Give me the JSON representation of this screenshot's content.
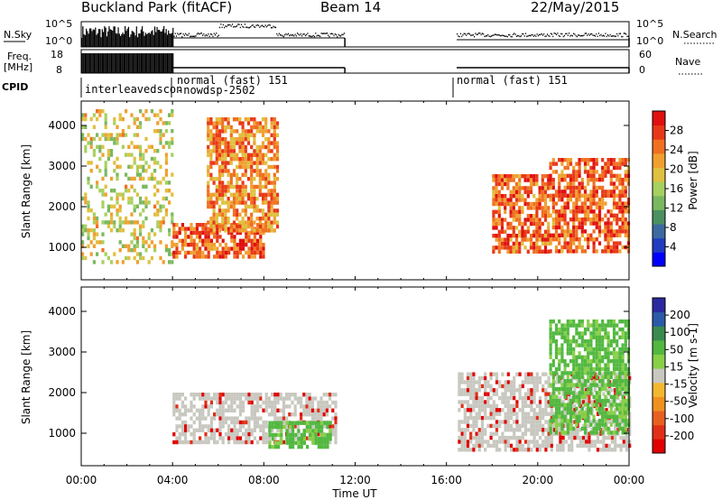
{
  "header": {
    "station": "Buckland Park (fitACF)",
    "beam": "Beam 14",
    "date": "22/May/2015"
  },
  "summary_labels": {
    "nsky": "N.Sky",
    "nsearch": "N.Search",
    "freq_line1": "Freq.",
    "freq_line2": "[MHz]",
    "nave": "Nave",
    "cpid": "CPID",
    "noise_tick_top": "10^5",
    "noise_tick_bottom": "10^0",
    "freq_tick_top": "18",
    "freq_tick_bottom": "8",
    "nave_tick_top": "60",
    "nave_tick_bottom": "0"
  },
  "cpid_labels": [
    "interleavedscon",
    "normal (fast) 151",
    "-nowdsp-2502",
    "normal (fast) 151"
  ],
  "x_axis": {
    "title": "Time UT",
    "ticks": [
      "00:00",
      "04:00",
      "08:00",
      "12:00",
      "16:00",
      "20:00",
      "00:00"
    ],
    "tick_hours": [
      0,
      4,
      8,
      12,
      16,
      20,
      24
    ],
    "range_hours": [
      0,
      24
    ]
  },
  "colors": {
    "power_scale": [
      "#0000ff",
      "#203cc0",
      "#3c6aa0",
      "#4a9060",
      "#7ab860",
      "#a8d060",
      "#e0c040",
      "#f0a030",
      "#f07020",
      "#e83818",
      "#e01010"
    ],
    "velocity_scale": [
      "#2a2aa0",
      "#2a5aa8",
      "#3a8a50",
      "#52b840",
      "#88d048",
      "#c8c8c0",
      "#f2b830",
      "#f09020",
      "#e86020",
      "#e03018",
      "#e00000"
    ]
  },
  "chart_data": [
    {
      "type": "heatmap",
      "name": "power",
      "ylabel": "Slant Range [km]",
      "yticks": [
        1000,
        2000,
        3000,
        4000
      ],
      "ylim": [
        200,
        4600
      ],
      "xlim_hours": [
        0,
        24
      ],
      "colorbar": {
        "label": "Power [dB]",
        "ticks": [
          "4",
          "8",
          "12",
          "16",
          "20",
          "24",
          "28"
        ],
        "range": [
          0,
          32
        ]
      },
      "data_windows_hours": [
        [
          0,
          11.55
        ],
        [
          16.45,
          24
        ]
      ],
      "features": [
        {
          "desc": "interleaved scan region",
          "t": [
            0,
            4
          ],
          "range_km": [
            600,
            4400
          ],
          "level_db": 18
        },
        {
          "desc": "near-range echo band",
          "t": [
            4,
            8
          ],
          "range_km": [
            800,
            1600
          ],
          "level_db": 27
        },
        {
          "desc": "rising arc",
          "t": [
            5.5,
            8.6
          ],
          "range_km": [
            1400,
            4200
          ],
          "level_db": 24
        },
        {
          "desc": "evening arc",
          "t": [
            18.0,
            20.5
          ],
          "range_km": [
            900,
            2800
          ],
          "level_db": 26
        },
        {
          "desc": "late arc",
          "t": [
            20.5,
            24
          ],
          "range_km": [
            900,
            3200
          ],
          "level_db": 27
        }
      ]
    },
    {
      "type": "heatmap",
      "name": "velocity",
      "ylabel": "Slant Range [km]",
      "yticks": [
        1000,
        2000,
        3000,
        4000
      ],
      "ylim": [
        200,
        4600
      ],
      "xlim_hours": [
        0,
        24
      ],
      "colorbar": {
        "label": "Velocity [m s-1]",
        "ticks": [
          "200",
          "100",
          "50",
          "15",
          "-15",
          "-50",
          "-100",
          "-200"
        ],
        "range": [
          -250,
          250
        ]
      },
      "data_windows_hours": [
        [
          0,
          11.55
        ],
        [
          16.45,
          24
        ]
      ],
      "features": [
        {
          "desc": "ground scatter band",
          "t": [
            4,
            11.2
          ],
          "range_km": [
            800,
            2000
          ],
          "level": 0
        },
        {
          "desc": "positive velocity patch",
          "t": [
            8.2,
            10.9
          ],
          "range_km": [
            700,
            1300
          ],
          "level": 40
        },
        {
          "desc": "ground scatter block",
          "t": [
            16.5,
            24
          ],
          "range_km": [
            600,
            2500
          ],
          "level": 0
        },
        {
          "desc": "positive velocity streaks",
          "t": [
            20.5,
            24
          ],
          "range_km": [
            1000,
            3800
          ],
          "level": 35
        }
      ]
    }
  ]
}
